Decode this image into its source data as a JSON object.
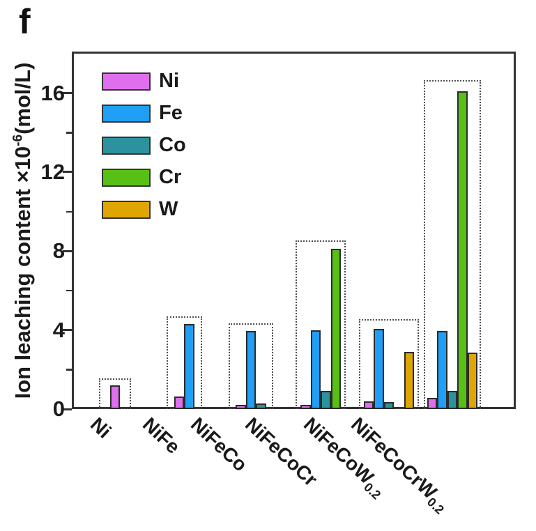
{
  "panel_label": "f",
  "y_axis": {
    "title_prefix": "Ion leaching content ×10",
    "title_sup": "-6",
    "title_suffix": "(mol/L)",
    "major_ticks": [
      0,
      4,
      8,
      12,
      16
    ],
    "minor_ticks": [
      2,
      6,
      10,
      14
    ]
  },
  "legend": {
    "items": [
      {
        "label": "Ni",
        "color": "#E06FEE"
      },
      {
        "label": "Fe",
        "color": "#1F9FF5"
      },
      {
        "label": "Co",
        "color": "#2B929E"
      },
      {
        "label": "Cr",
        "color": "#58C014"
      },
      {
        "label": "W",
        "color": "#DFA602"
      }
    ]
  },
  "colors": {
    "axis": "#333333",
    "bar_stroke": "#2b2b2b",
    "box_stroke": "#4f4f4f",
    "background": "#ffffff"
  },
  "chart_data": {
    "type": "bar",
    "title": "",
    "xlabel": "",
    "ylabel": "Ion leaching content ×10⁻⁶(mol/L)",
    "ylim": [
      0,
      18.1
    ],
    "y_major_ticks": [
      0,
      4,
      8,
      12,
      16
    ],
    "y_minor_ticks": [
      2,
      6,
      10,
      14
    ],
    "grid": false,
    "legend_position": "top-left",
    "categories": [
      {
        "base": "Ni",
        "sub": ""
      },
      {
        "base": "NiFe",
        "sub": ""
      },
      {
        "base": "NiFeCo",
        "sub": ""
      },
      {
        "base": "NiFeCoCr",
        "sub": ""
      },
      {
        "base": "NiFeCoW",
        "sub": "0.2"
      },
      {
        "base": "NiFeCoCrW",
        "sub": "0.2"
      }
    ],
    "categories_display": [
      "Ni",
      "NiFe",
      "NiFeCo",
      "NiFeCoCr",
      "NiFeCoW0.2",
      "NiFeCoCrW0.2"
    ],
    "series": [
      {
        "name": "Ni",
        "color": "#E06FEE",
        "values": [
          1.2,
          0.65,
          0.22,
          0.22,
          0.4,
          0.55
        ]
      },
      {
        "name": "Fe",
        "color": "#1F9FF5",
        "values": [
          null,
          4.3,
          3.95,
          4.0,
          4.05,
          3.95
        ]
      },
      {
        "name": "Co",
        "color": "#2B929E",
        "values": [
          null,
          null,
          0.28,
          0.9,
          0.34,
          0.92
        ]
      },
      {
        "name": "Cr",
        "color": "#58C014",
        "values": [
          null,
          null,
          null,
          8.1,
          null,
          16.1
        ]
      },
      {
        "name": "W",
        "color": "#DFA602",
        "values": [
          null,
          null,
          null,
          null,
          2.9,
          2.85
        ]
      }
    ],
    "group_box_heights": [
      1.55,
      4.7,
      4.35,
      8.55,
      4.55,
      16.65
    ]
  }
}
